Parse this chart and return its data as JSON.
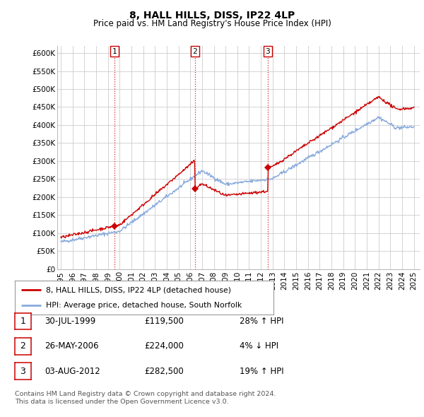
{
  "title": "8, HALL HILLS, DISS, IP22 4LP",
  "subtitle": "Price paid vs. HM Land Registry's House Price Index (HPI)",
  "background_color": "#ffffff",
  "grid_color": "#cccccc",
  "ylim": [
    0,
    620000
  ],
  "yticks": [
    0,
    50000,
    100000,
    150000,
    200000,
    250000,
    300000,
    350000,
    400000,
    450000,
    500000,
    550000,
    600000
  ],
  "ytick_labels": [
    "£0",
    "£50K",
    "£100K",
    "£150K",
    "£200K",
    "£250K",
    "£300K",
    "£350K",
    "£400K",
    "£450K",
    "£500K",
    "£550K",
    "£600K"
  ],
  "transactions": [
    {
      "date": "30-JUL-1999",
      "price": 119500,
      "label": "1",
      "year_x": 1999.58,
      "hpi_pct": "28% ↑ HPI"
    },
    {
      "date": "26-MAY-2006",
      "price": 224000,
      "label": "2",
      "year_x": 2006.4,
      "hpi_pct": "4% ↓ HPI"
    },
    {
      "date": "03-AUG-2012",
      "price": 282500,
      "label": "3",
      "year_x": 2012.59,
      "hpi_pct": "19% ↑ HPI"
    }
  ],
  "legend_property": "8, HALL HILLS, DISS, IP22 4LP (detached house)",
  "legend_hpi": "HPI: Average price, detached house, South Norfolk",
  "footnote1": "Contains HM Land Registry data © Crown copyright and database right 2024.",
  "footnote2": "This data is licensed under the Open Government Licence v3.0.",
  "property_line_color": "#cc0000",
  "hpi_line_color": "#88aadd",
  "vline_color": "#cc0000",
  "marker_color": "#cc0000",
  "xlim_left": 1994.7,
  "xlim_right": 2025.5,
  "xticks": [
    1995,
    1996,
    1997,
    1998,
    1999,
    2000,
    2001,
    2002,
    2003,
    2004,
    2005,
    2006,
    2007,
    2008,
    2009,
    2010,
    2011,
    2012,
    2013,
    2014,
    2015,
    2016,
    2017,
    2018,
    2019,
    2020,
    2021,
    2022,
    2023,
    2024,
    2025
  ]
}
